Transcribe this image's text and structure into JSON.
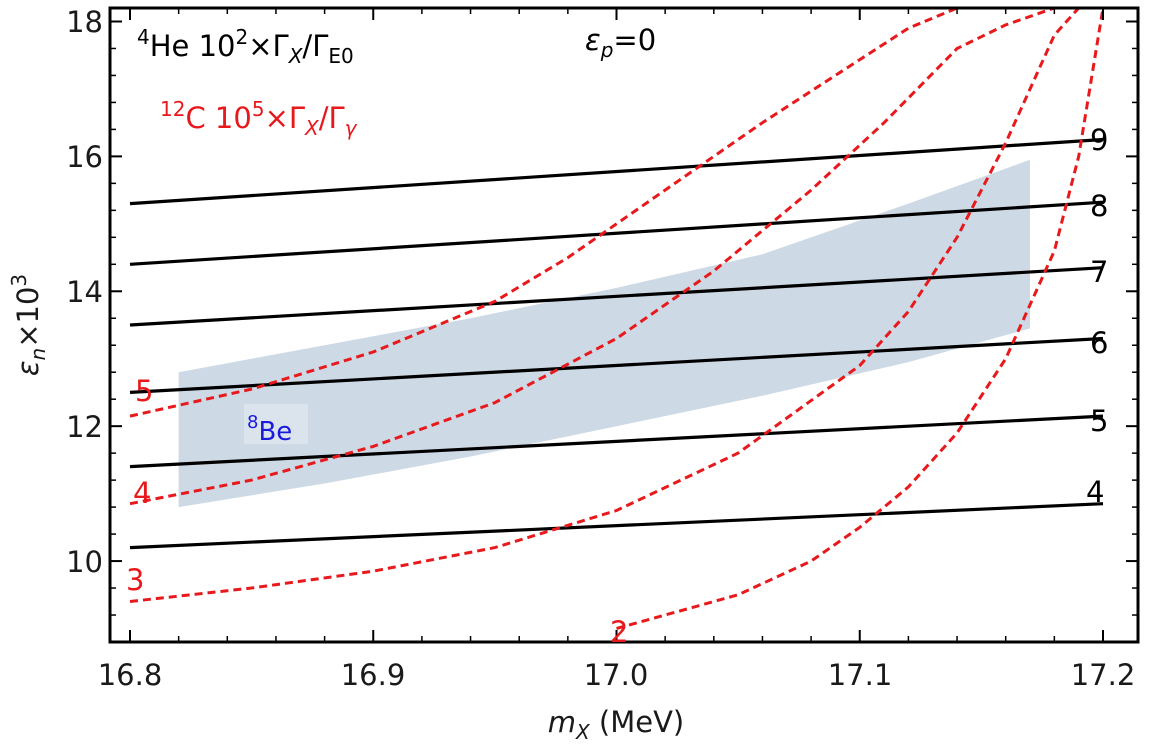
{
  "chart_data": {
    "type": "line",
    "xlabel": {
      "symbol": "m",
      "sub": "X",
      "rest": " (MeV)"
    },
    "ylabel": {
      "symbol": "ε",
      "sub": "n",
      "rest": "×10",
      "sup": "3"
    },
    "xlim": [
      16.8,
      17.2
    ],
    "ylim": [
      8.8,
      18.2
    ],
    "xticks": [
      "16.8",
      "16.9",
      "17.0",
      "17.1",
      "17.2"
    ],
    "yticks": [
      "10",
      "12",
      "14",
      "16",
      "18"
    ],
    "condition": {
      "symbol": "ε",
      "sub": "p",
      "rest": "=0"
    },
    "legend": {
      "he4": {
        "sup": "4",
        "pre": "He 10",
        "sup2": "2",
        "mid": "×Γ",
        "sub": "X",
        "post": "/Γ",
        "sub2": "E0",
        "color": "#000000"
      },
      "c12": {
        "sup": "12",
        "pre": "C 10",
        "sup2": "5",
        "mid": "×Γ",
        "sub": "X",
        "post": "/Γ",
        "sub2": "γ",
        "color": "#e8191c"
      }
    },
    "band": {
      "label": {
        "sup": "8",
        "text": "Be"
      },
      "color": "#cdd9e5",
      "label_color": "#1a1adc",
      "upper": [
        [
          16.82,
          12.8
        ],
        [
          16.88,
          13.2
        ],
        [
          16.94,
          13.6
        ],
        [
          17.0,
          14.05
        ],
        [
          17.06,
          14.55
        ],
        [
          17.12,
          15.3
        ],
        [
          17.17,
          15.95
        ]
      ],
      "lower": [
        [
          16.82,
          10.8
        ],
        [
          16.88,
          11.15
        ],
        [
          16.94,
          11.55
        ],
        [
          17.0,
          12.0
        ],
        [
          17.06,
          12.45
        ],
        [
          17.12,
          12.95
        ],
        [
          17.17,
          13.45
        ]
      ]
    },
    "series": [
      {
        "name": "He4 contour 4",
        "label": "4",
        "style": "solid",
        "color": "#000000",
        "x": [
          16.8,
          17.2
        ],
        "y": [
          10.2,
          10.85
        ]
      },
      {
        "name": "He4 contour 5",
        "label": "5",
        "style": "solid",
        "color": "#000000",
        "x": [
          16.8,
          17.2
        ],
        "y": [
          11.4,
          12.15
        ]
      },
      {
        "name": "He4 contour 6",
        "label": "6",
        "style": "solid",
        "color": "#000000",
        "x": [
          16.8,
          17.2
        ],
        "y": [
          12.5,
          13.3
        ]
      },
      {
        "name": "He4 contour 7",
        "label": "7",
        "style": "solid",
        "color": "#000000",
        "x": [
          16.8,
          17.2
        ],
        "y": [
          13.5,
          14.35
        ]
      },
      {
        "name": "He4 contour 8",
        "label": "8",
        "style": "solid",
        "color": "#000000",
        "x": [
          16.8,
          17.2
        ],
        "y": [
          14.4,
          15.32
        ]
      },
      {
        "name": "He4 contour 9",
        "label": "9",
        "style": "solid",
        "color": "#000000",
        "x": [
          16.8,
          17.2
        ],
        "y": [
          15.3,
          16.25
        ]
      },
      {
        "name": "C12 contour 2",
        "label": "2",
        "style": "dashed",
        "color": "#e8191c",
        "x": [
          17.0,
          17.05,
          17.08,
          17.1,
          17.12,
          17.14,
          17.16,
          17.18,
          17.19,
          17.2
        ],
        "y": [
          9.0,
          9.5,
          10.0,
          10.5,
          11.1,
          11.9,
          13.0,
          14.6,
          16.0,
          18.2
        ]
      },
      {
        "name": "C12 contour 3",
        "label": "3",
        "style": "dashed",
        "color": "#e8191c",
        "x": [
          16.8,
          16.85,
          16.9,
          16.95,
          17.0,
          17.05,
          17.1,
          17.12,
          17.14,
          17.16,
          17.18,
          17.19
        ],
        "y": [
          9.4,
          9.6,
          9.85,
          10.2,
          10.75,
          11.6,
          12.9,
          13.7,
          14.8,
          16.2,
          17.8,
          18.2
        ]
      },
      {
        "name": "C12 contour 4",
        "label": "4",
        "style": "dashed",
        "color": "#e8191c",
        "x": [
          16.8,
          16.85,
          16.9,
          16.95,
          17.0,
          17.04,
          17.08,
          17.11,
          17.14,
          17.16,
          17.18
        ],
        "y": [
          10.85,
          11.2,
          11.7,
          12.35,
          13.3,
          14.3,
          15.5,
          16.5,
          17.6,
          17.95,
          18.2
        ]
      },
      {
        "name": "C12 contour 5",
        "label": "5",
        "style": "dashed",
        "color": "#e8191c",
        "x": [
          16.8,
          16.85,
          16.9,
          16.95,
          16.98,
          17.02,
          17.06,
          17.09,
          17.12,
          17.14
        ],
        "y": [
          12.15,
          12.55,
          13.1,
          13.85,
          14.5,
          15.5,
          16.5,
          17.2,
          17.9,
          18.2
        ]
      }
    ]
  }
}
